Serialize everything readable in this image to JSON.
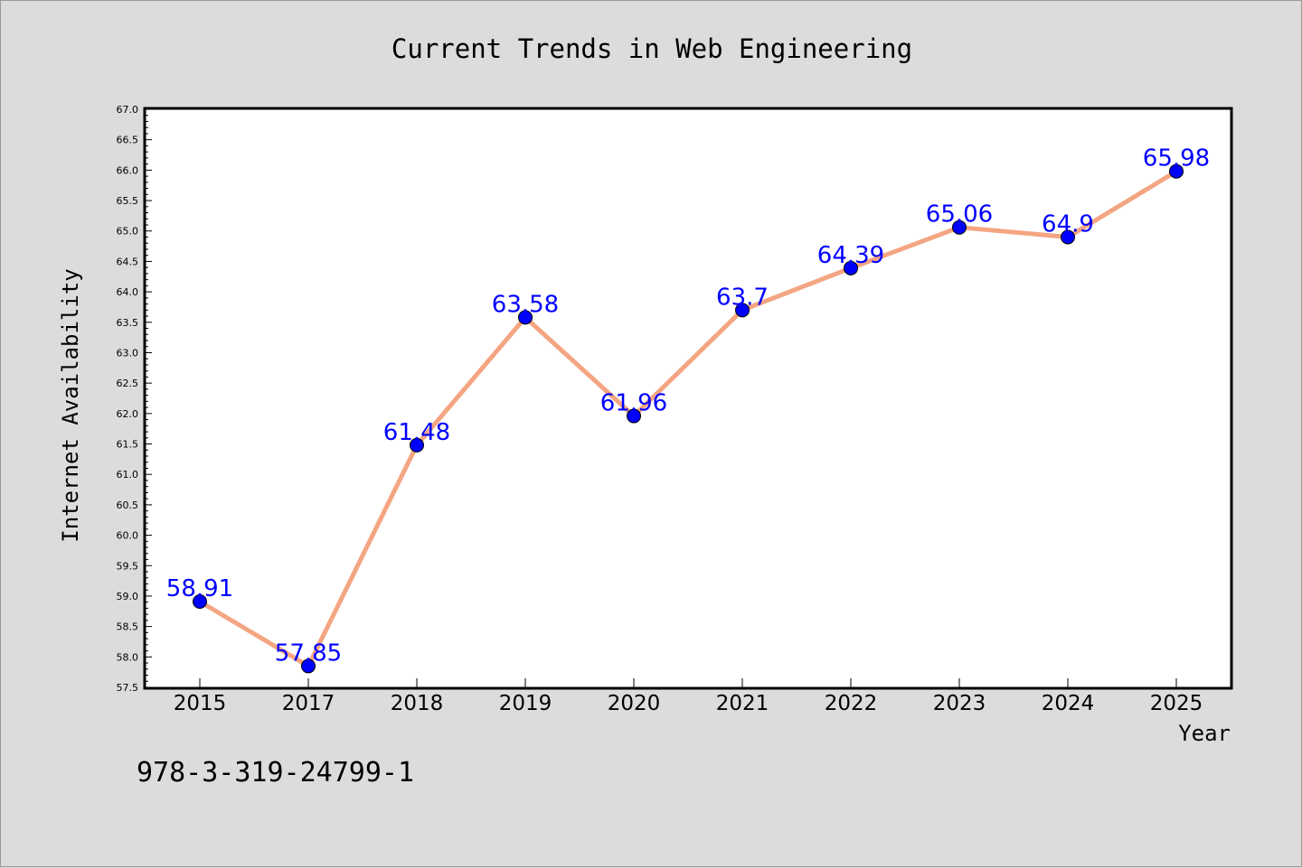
{
  "chart_data": {
    "type": "line",
    "title": "Current Trends in Web Engineering",
    "xlabel": "Year",
    "ylabel": "Internet Availability",
    "categories": [
      "2015",
      "2017",
      "2018",
      "2019",
      "2020",
      "2021",
      "2022",
      "2023",
      "2024",
      "2025"
    ],
    "series": [
      {
        "values": [
          58.91,
          57.85,
          61.48,
          63.58,
          61.96,
          63.7,
          64.39,
          65.06,
          64.9,
          65.98
        ],
        "labels": [
          "58.91",
          "57.85",
          "61.48",
          "63.58",
          "61.96",
          "63.7",
          "64.39",
          "65.06",
          "64.9",
          "65.98"
        ],
        "line_color": "#f4a582",
        "marker_color": "#0000ff"
      }
    ],
    "ylim": [
      57.5,
      67.0
    ],
    "yticks": [
      "57.5",
      "58.0",
      "58.5",
      "59.0",
      "59.5",
      "60.0",
      "60.5",
      "61.0",
      "61.5",
      "62.0",
      "62.5",
      "63.0",
      "63.5",
      "64.0",
      "64.5",
      "65.0",
      "65.5",
      "66.0",
      "66.5",
      "67.0"
    ],
    "grid": false,
    "label_color": "#0000ff"
  },
  "footnote": "978-3-319-24799-1"
}
